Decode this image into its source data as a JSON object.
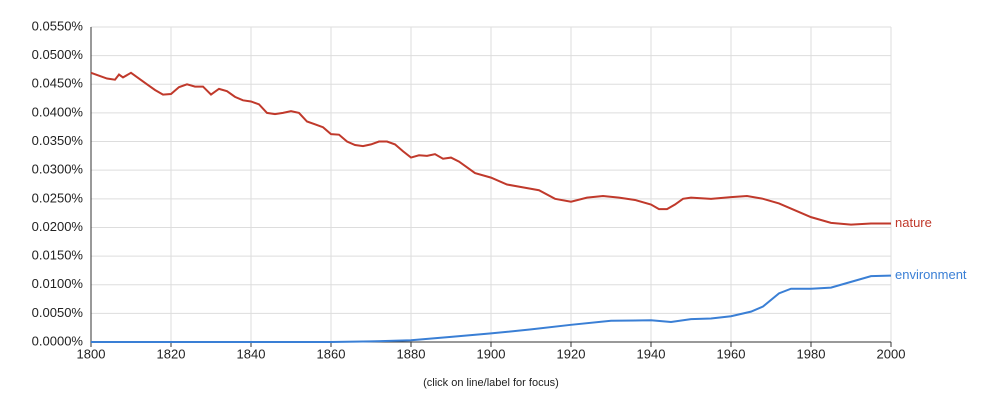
{
  "chart_data": {
    "type": "line",
    "note": "(click on line/label for focus)",
    "xlim": [
      1800,
      2000
    ],
    "xticks": [
      1800,
      1820,
      1840,
      1860,
      1880,
      1900,
      1920,
      1940,
      1960,
      1980,
      2000
    ],
    "ylim": [
      0,
      0.055
    ],
    "yticks": [
      {
        "value": 0,
        "label": "0.0000%"
      },
      {
        "value": 0.005,
        "label": "0.0050%"
      },
      {
        "value": 0.01,
        "label": "0.0100%"
      },
      {
        "value": 0.015,
        "label": "0.0150%"
      },
      {
        "value": 0.02,
        "label": "0.0200%"
      },
      {
        "value": 0.025,
        "label": "0.0250%"
      },
      {
        "value": 0.03,
        "label": "0.0300%"
      },
      {
        "value": 0.035,
        "label": "0.0350%"
      },
      {
        "value": 0.04,
        "label": "0.0400%"
      },
      {
        "value": 0.045,
        "label": "0.0450%"
      },
      {
        "value": 0.05,
        "label": "0.0500%"
      },
      {
        "value": 0.055,
        "label": "0.0550%"
      }
    ],
    "grid": true,
    "series": [
      {
        "name": "nature",
        "color": "#c0392b",
        "x": [
          1800,
          1804,
          1806,
          1807,
          1808,
          1810,
          1812,
          1814,
          1816,
          1818,
          1820,
          1822,
          1824,
          1826,
          1828,
          1830,
          1832,
          1834,
          1836,
          1838,
          1840,
          1842,
          1844,
          1846,
          1848,
          1850,
          1852,
          1854,
          1856,
          1858,
          1860,
          1862,
          1864,
          1866,
          1868,
          1870,
          1872,
          1874,
          1876,
          1878,
          1880,
          1882,
          1884,
          1886,
          1888,
          1890,
          1892,
          1894,
          1896,
          1900,
          1904,
          1908,
          1912,
          1916,
          1920,
          1924,
          1928,
          1932,
          1936,
          1940,
          1942,
          1944,
          1946,
          1948,
          1950,
          1955,
          1960,
          1964,
          1968,
          1972,
          1976,
          1980,
          1985,
          1990,
          1995,
          2000
        ],
        "values": [
          0.047,
          0.046,
          0.0458,
          0.0467,
          0.0462,
          0.047,
          0.046,
          0.045,
          0.044,
          0.0432,
          0.0433,
          0.0445,
          0.045,
          0.0446,
          0.0446,
          0.0432,
          0.0442,
          0.0438,
          0.0428,
          0.0422,
          0.042,
          0.0415,
          0.04,
          0.0398,
          0.04,
          0.0403,
          0.04,
          0.0385,
          0.038,
          0.0375,
          0.0363,
          0.0362,
          0.035,
          0.0344,
          0.0342,
          0.0345,
          0.035,
          0.035,
          0.0345,
          0.0333,
          0.0322,
          0.0326,
          0.0325,
          0.0328,
          0.032,
          0.0322,
          0.0315,
          0.0305,
          0.0295,
          0.0287,
          0.0275,
          0.027,
          0.0265,
          0.025,
          0.0245,
          0.0252,
          0.0255,
          0.0252,
          0.0248,
          0.024,
          0.0232,
          0.0232,
          0.024,
          0.025,
          0.0252,
          0.025,
          0.0253,
          0.0255,
          0.025,
          0.0242,
          0.023,
          0.0218,
          0.0208,
          0.0205,
          0.0207,
          0.0207
        ]
      },
      {
        "name": "environment",
        "color": "#3a7fd5",
        "x": [
          1800,
          1860,
          1870,
          1880,
          1890,
          1900,
          1910,
          1920,
          1930,
          1940,
          1945,
          1950,
          1955,
          1960,
          1965,
          1968,
          1972,
          1975,
          1980,
          1985,
          1990,
          1995,
          2000
        ],
        "values": [
          0,
          0,
          0.0001,
          0.0003,
          0.0009,
          0.0015,
          0.0022,
          0.003,
          0.0037,
          0.0038,
          0.0035,
          0.004,
          0.0041,
          0.0045,
          0.0053,
          0.0062,
          0.0085,
          0.0093,
          0.0093,
          0.0095,
          0.0105,
          0.0115,
          0.0116
        ]
      }
    ]
  }
}
